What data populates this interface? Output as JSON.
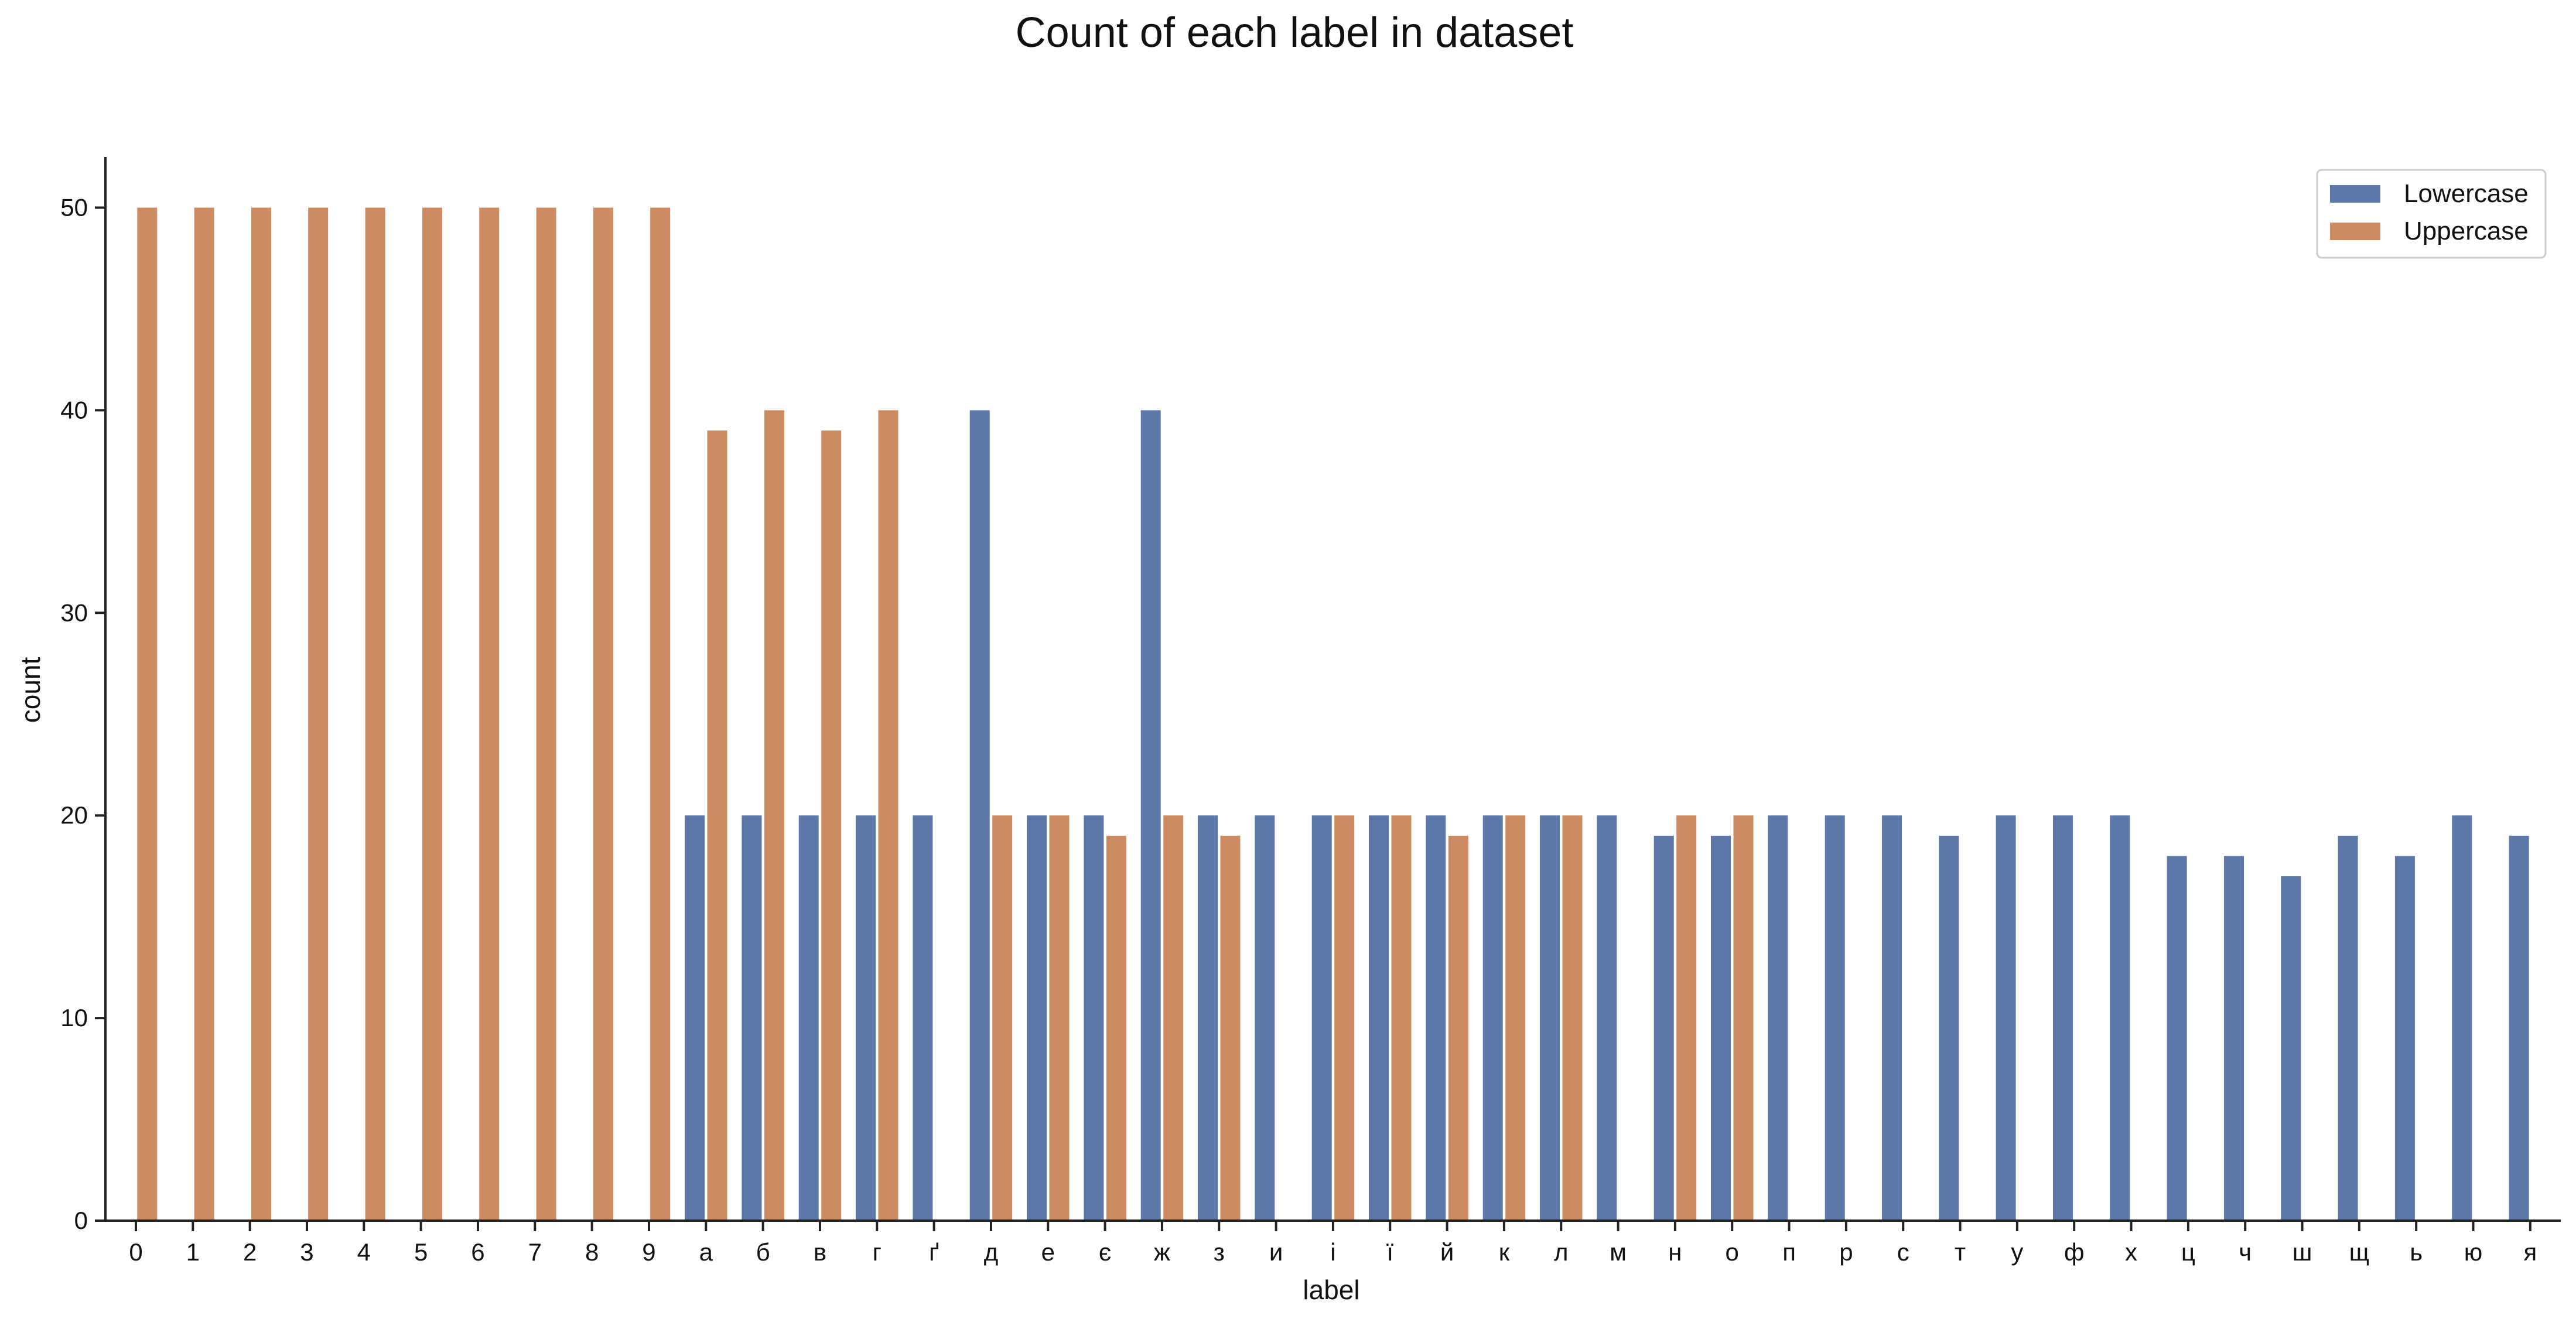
{
  "chart_data": {
    "type": "bar",
    "title": "Count of each label in dataset",
    "xlabel": "label",
    "ylabel": "count",
    "ylim": [
      0,
      52.5
    ],
    "yticks": [
      0,
      10,
      20,
      30,
      40,
      50
    ],
    "legend_placement": "top-right",
    "grid": false,
    "categories": [
      "0",
      "1",
      "2",
      "3",
      "4",
      "5",
      "6",
      "7",
      "8",
      "9",
      "а",
      "б",
      "в",
      "г",
      "ґ",
      "д",
      "е",
      "є",
      "ж",
      "з",
      "и",
      "і",
      "ї",
      "й",
      "к",
      "л",
      "м",
      "н",
      "о",
      "п",
      "р",
      "с",
      "т",
      "у",
      "ф",
      "х",
      "ц",
      "ч",
      "ш",
      "щ",
      "ь",
      "ю",
      "я"
    ],
    "series": [
      {
        "name": "Lowercase",
        "color": "#5b78a8",
        "values": [
          0,
          0,
          0,
          0,
          0,
          0,
          0,
          0,
          0,
          0,
          20,
          20,
          20,
          20,
          20,
          40,
          20,
          20,
          40,
          20,
          20,
          20,
          20,
          20,
          20,
          20,
          20,
          19,
          19,
          20,
          20,
          20,
          19,
          20,
          20,
          20,
          18,
          18,
          17,
          19,
          18,
          20,
          19
        ]
      },
      {
        "name": "Uppercase",
        "color": "#cd8b62",
        "values": [
          50,
          50,
          50,
          50,
          50,
          50,
          50,
          50,
          50,
          50,
          39,
          40,
          39,
          40,
          0,
          20,
          20,
          19,
          20,
          19,
          0,
          20,
          20,
          19,
          20,
          20,
          0,
          20,
          20,
          0,
          0,
          0,
          0,
          0,
          0,
          0,
          0,
          0,
          0,
          0,
          0,
          0,
          0
        ]
      }
    ]
  }
}
